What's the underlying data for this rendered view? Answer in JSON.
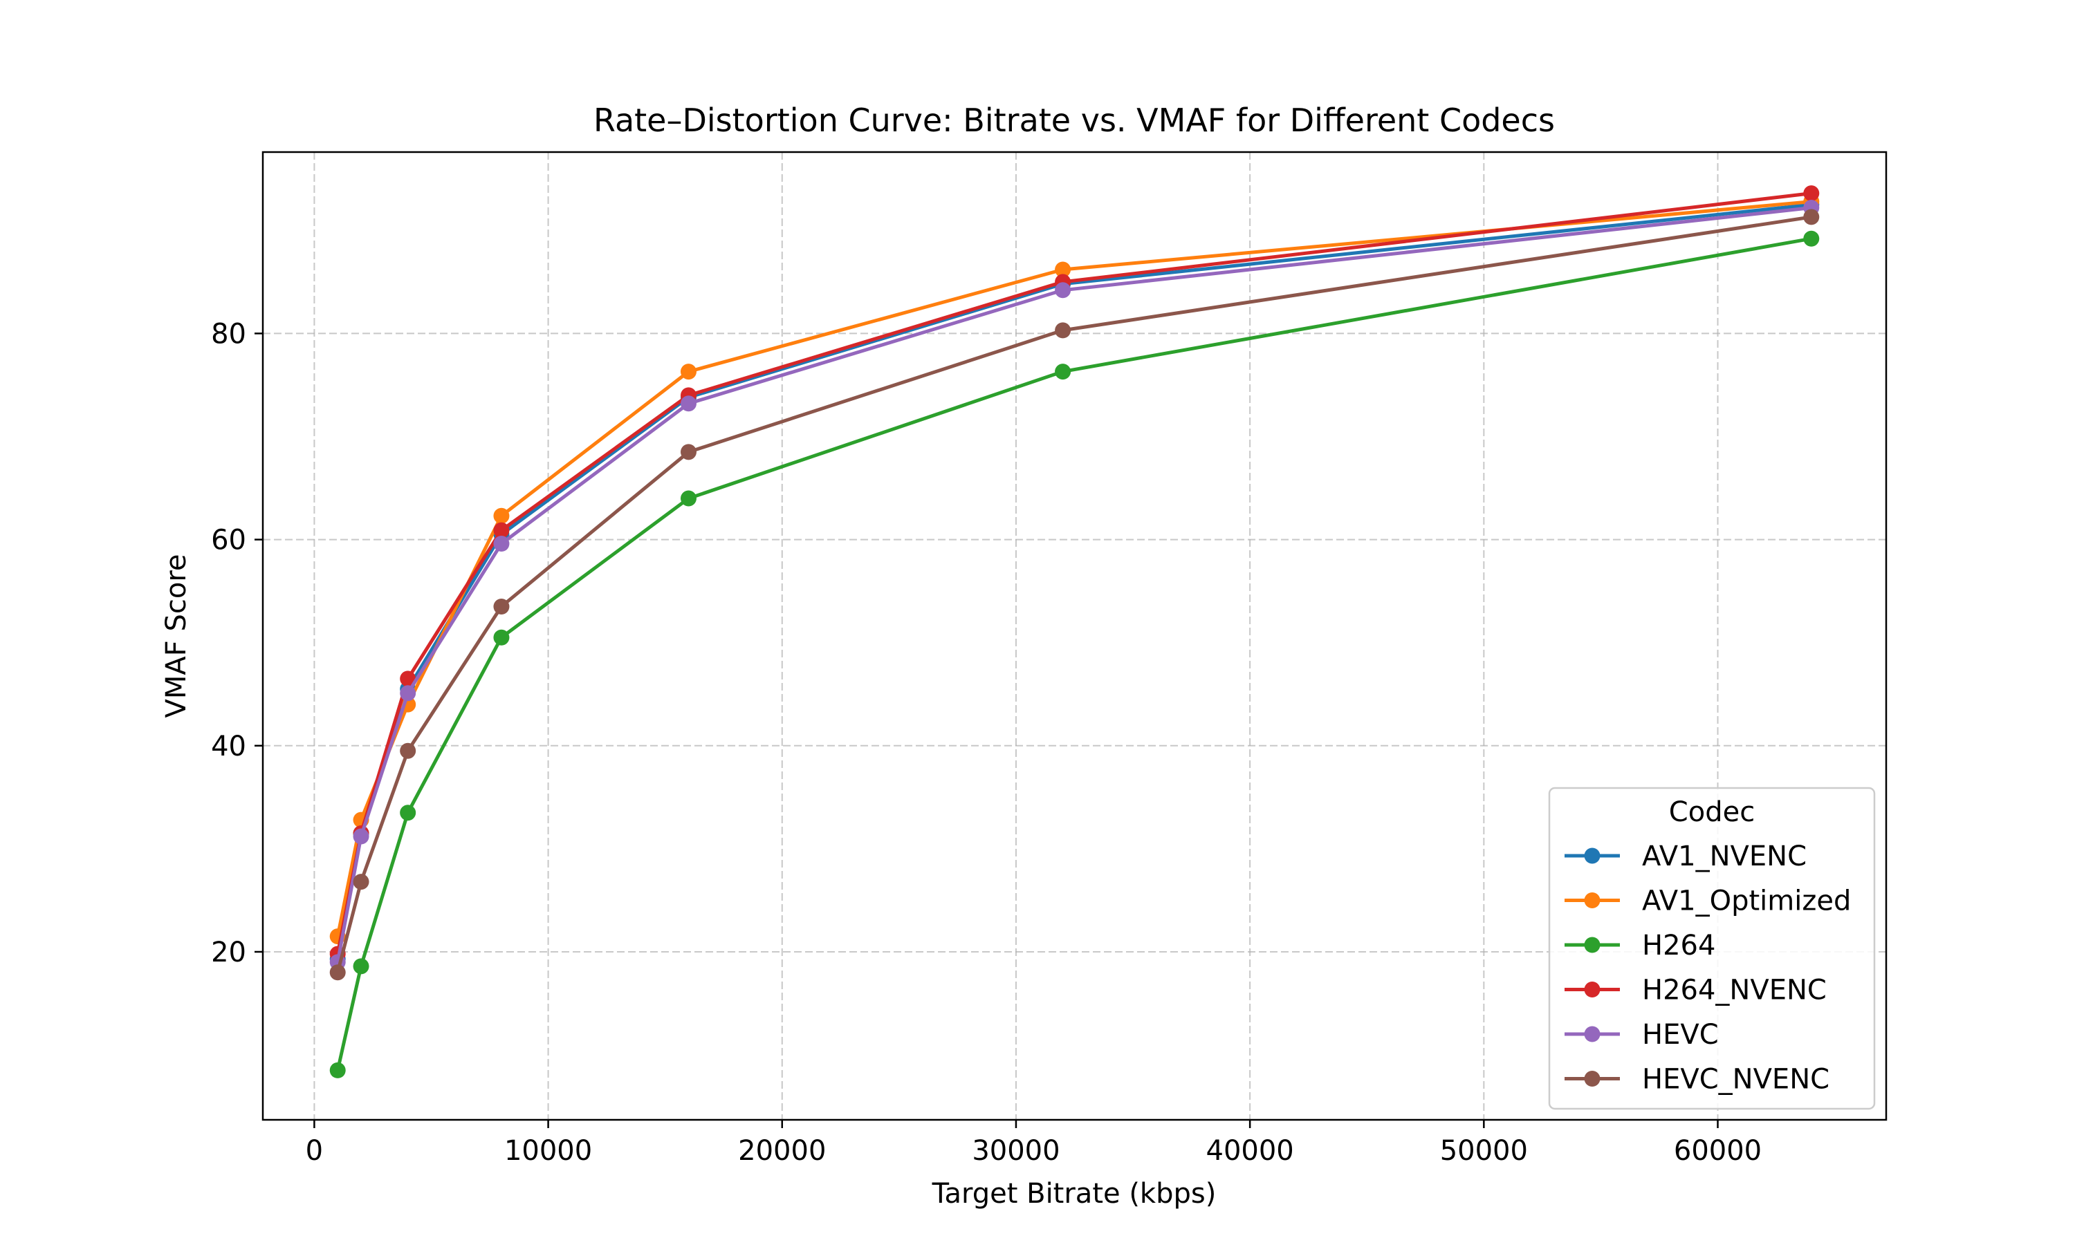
{
  "chart_data": {
    "type": "line",
    "title": "Rate–Distortion Curve: Bitrate vs. VMAF for Different Codecs",
    "xlabel": "Target Bitrate (kbps)",
    "ylabel": "VMAF Score",
    "xlim": [
      -2200,
      67200
    ],
    "ylim": [
      3.7,
      97.6
    ],
    "xticks": [
      0,
      10000,
      20000,
      30000,
      40000,
      50000,
      60000
    ],
    "xtick_labels": [
      "0",
      "10000",
      "20000",
      "30000",
      "40000",
      "50000",
      "60000"
    ],
    "yticks": [
      20,
      40,
      60,
      80
    ],
    "ytick_labels": [
      "20",
      "40",
      "60",
      "80"
    ],
    "grid": true,
    "legend_title": "Codec",
    "legend_position": "lower right",
    "x": [
      1000,
      2000,
      4000,
      8000,
      16000,
      32000,
      64000
    ],
    "series": [
      {
        "name": "AV1_NVENC",
        "color": "#1f77b4",
        "values": [
          19.3,
          31.5,
          45.5,
          60.5,
          73.8,
          84.8,
          92.5
        ]
      },
      {
        "name": "AV1_Optimized",
        "color": "#ff7f0e",
        "values": [
          21.5,
          32.8,
          44.0,
          62.3,
          76.3,
          86.2,
          92.8
        ]
      },
      {
        "name": "H264",
        "color": "#2ca02c",
        "values": [
          8.5,
          18.6,
          33.5,
          50.5,
          64.0,
          76.3,
          89.2
        ]
      },
      {
        "name": "H264_NVENC",
        "color": "#d62728",
        "values": [
          19.8,
          31.5,
          46.5,
          60.9,
          74.0,
          85.0,
          93.6
        ]
      },
      {
        "name": "HEVC",
        "color": "#9467bd",
        "values": [
          19.0,
          31.2,
          45.1,
          59.6,
          73.2,
          84.2,
          92.2
        ]
      },
      {
        "name": "HEVC_NVENC",
        "color": "#8c564b",
        "values": [
          18.0,
          26.8,
          39.5,
          53.5,
          68.5,
          80.3,
          91.3
        ]
      }
    ]
  }
}
